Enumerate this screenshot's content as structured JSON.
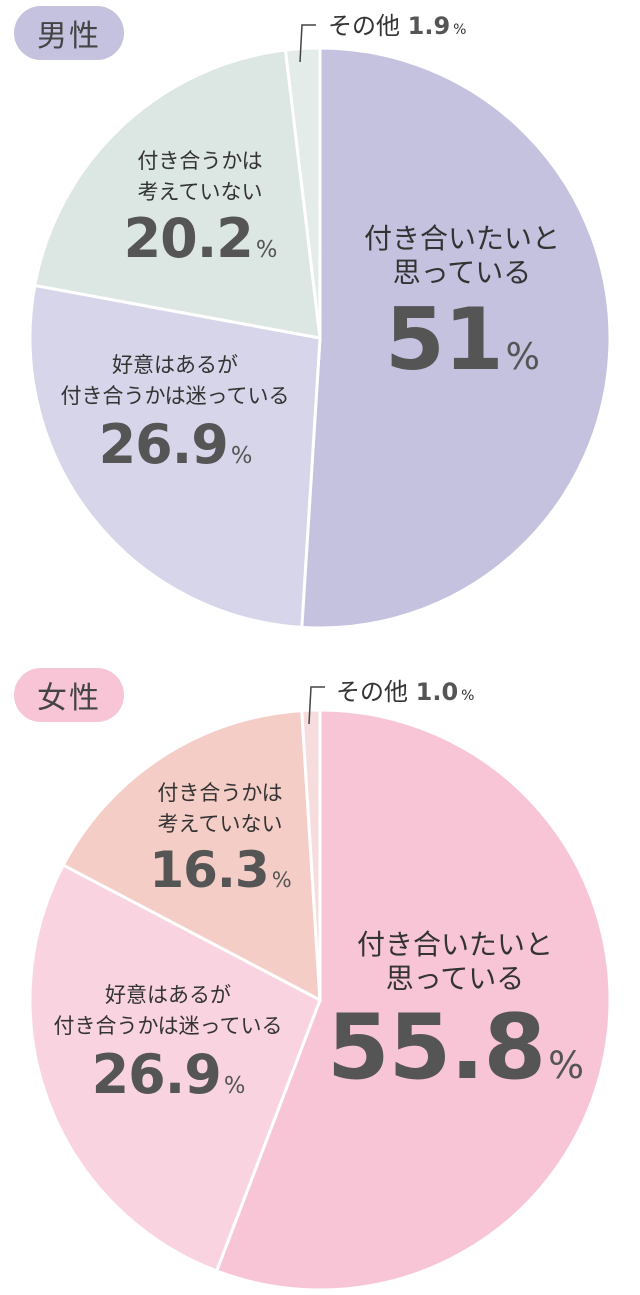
{
  "chart_data": [
    {
      "type": "pie",
      "title": "男性",
      "categories": [
        "付き合いたいと思っている",
        "好意はあるが付き合うかは迷っている",
        "付き合うかは考えていない",
        "その他"
      ],
      "values": [
        51,
        26.9,
        20.2,
        1.9
      ],
      "value_labels": [
        "51",
        "26.9",
        "20.2",
        "1.9"
      ],
      "label_lines": [
        [
          "付き合いたいと",
          "思っている"
        ],
        [
          "好意はあるが",
          "付き合うかは迷っている"
        ],
        [
          "付き合うかは",
          "考えていない"
        ],
        [
          "その他"
        ]
      ],
      "unit": "%",
      "colors": [
        "#c4c2df",
        "#d6d5ea",
        "#dce6e2",
        "#e4ecea"
      ],
      "title_color": "#c4c2df",
      "direction": "clockwise from top"
    },
    {
      "type": "pie",
      "title": "女性",
      "categories": [
        "付き合いたいと思っている",
        "好意はあるが付き合うかは迷っている",
        "付き合うかは考えていない",
        "その他"
      ],
      "values": [
        55.8,
        26.9,
        16.3,
        1.0
      ],
      "value_labels": [
        "55.8",
        "26.9",
        "16.3",
        "1.0"
      ],
      "label_lines": [
        [
          "付き合いたいと",
          "思っている"
        ],
        [
          "好意はあるが",
          "付き合うかは迷っている"
        ],
        [
          "付き合うかは",
          "考えていない"
        ],
        [
          "その他"
        ]
      ],
      "unit": "%",
      "colors": [
        "#f7c5d5",
        "#f9d4e0",
        "#f4cdc6",
        "#f6dcdc"
      ],
      "title_color": "#f7c5d5",
      "direction": "clockwise from top"
    }
  ]
}
